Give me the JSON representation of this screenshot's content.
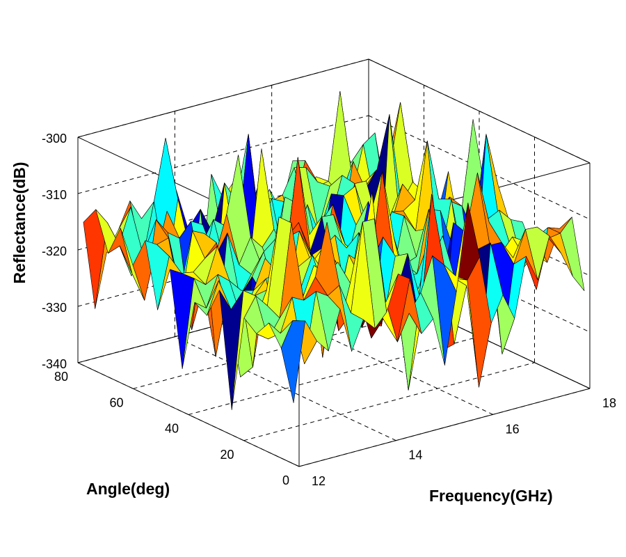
{
  "chart_data": {
    "type": "surface",
    "title": "",
    "xlabel": "Frequency(GHz)",
    "ylabel": "Angle(deg)",
    "zlabel": "Reflectance(dB)",
    "xlim": [
      12,
      18
    ],
    "ylim": [
      0,
      80
    ],
    "zlim": [
      -340,
      -300
    ],
    "xticks": [
      "12",
      "14",
      "16",
      "18"
    ],
    "yticks": [
      "0",
      "20",
      "40",
      "60",
      "80"
    ],
    "zticks": [
      "-340",
      "-330",
      "-320",
      "-310",
      "-300"
    ],
    "grid": true,
    "colormap": "jet",
    "clim": [
      -336,
      -306
    ],
    "surface": {
      "freq_points": 26,
      "angle_points": 18,
      "mean_db": -318,
      "noise_spread_db": 14,
      "min_db": -337,
      "max_db": -302,
      "seed": 7
    }
  }
}
